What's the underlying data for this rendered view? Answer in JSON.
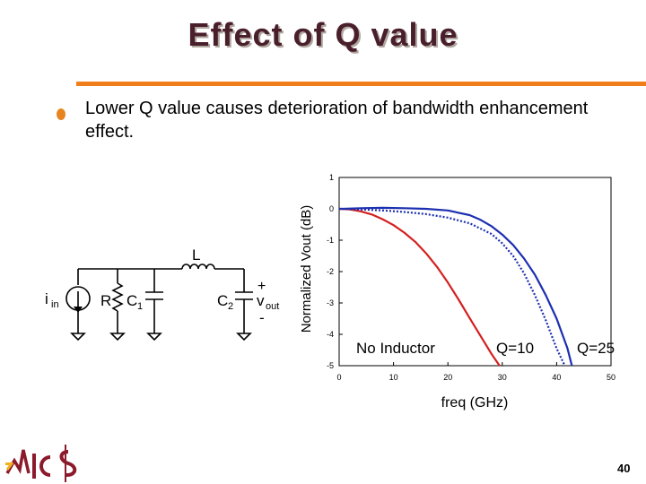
{
  "slide": {
    "title": "Effect of Q value",
    "bullet": "Lower Q value causes deterioration of bandwidth enhancement effect.",
    "page_number": "40",
    "accent_color": "#f07e1a"
  },
  "circuit": {
    "inductor_label": "L",
    "current_source_label": "i",
    "current_source_sub": "in",
    "resistor_label": "R",
    "cap1_label": "C",
    "cap1_sub": "1",
    "cap2_label": "C",
    "cap2_sub": "2",
    "vout_label": "v",
    "vout_sub": "out",
    "plus": "+",
    "minus": "-"
  },
  "chart_data": {
    "type": "line",
    "xlabel": "freq (GHz)",
    "ylabel": "Normalized Vout (dB)",
    "xlim": [
      0,
      50
    ],
    "ylim": [
      -5,
      1
    ],
    "xticks": [
      0,
      10,
      20,
      30,
      40,
      50
    ],
    "yticks": [
      1,
      0,
      -1,
      -2,
      -3,
      -4,
      -5
    ],
    "grid": false,
    "series": [
      {
        "name": "No Inductor",
        "color": "#d42020",
        "style": "solid",
        "x": [
          0,
          2,
          4,
          6,
          8,
          10,
          12,
          14,
          16,
          18,
          20,
          22,
          24,
          26,
          28,
          29.5
        ],
        "y": [
          0,
          -0.02,
          -0.08,
          -0.18,
          -0.33,
          -0.52,
          -0.76,
          -1.05,
          -1.42,
          -1.85,
          -2.35,
          -2.9,
          -3.48,
          -4.05,
          -4.62,
          -5
        ]
      },
      {
        "name": "Q=10",
        "color": "#1c2fb0",
        "style": "dotted",
        "x": [
          0,
          4,
          8,
          12,
          16,
          20,
          24,
          28,
          30,
          32,
          34,
          36,
          38,
          40,
          41.5
        ],
        "y": [
          0,
          -0.02,
          -0.05,
          -0.1,
          -0.17,
          -0.28,
          -0.46,
          -0.8,
          -1.1,
          -1.5,
          -2.05,
          -2.75,
          -3.55,
          -4.45,
          -5
        ]
      },
      {
        "name": "Q=25",
        "color": "#1c2fb0",
        "style": "solid",
        "x": [
          0,
          4,
          8,
          12,
          16,
          20,
          24,
          26,
          28,
          30,
          32,
          34,
          36,
          38,
          40,
          42,
          42.8
        ],
        "y": [
          0,
          0.02,
          0.03,
          0.02,
          0,
          -0.05,
          -0.2,
          -0.35,
          -0.55,
          -0.82,
          -1.15,
          -1.58,
          -2.1,
          -2.75,
          -3.5,
          -4.45,
          -5
        ]
      }
    ]
  }
}
